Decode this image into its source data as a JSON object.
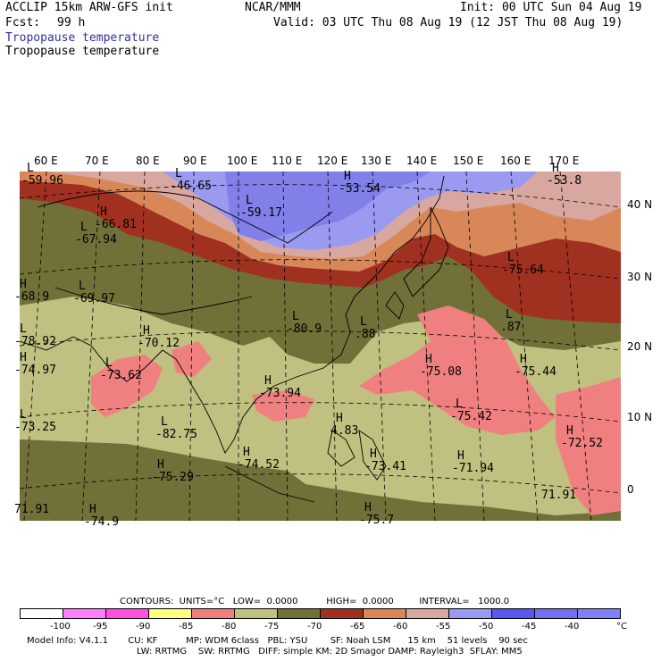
{
  "header": {
    "model": "ACCLIP 15km ARW-GFS init",
    "org": "NCAR/MMM",
    "init": "Init: 00 UTC Sun 04 Aug 19",
    "fcst_label": "Fcst:",
    "fcst_value": "99 h",
    "valid": "Valid: 03 UTC Thu 08 Aug 19 (12 JST Thu 08 Aug 19)",
    "field_blue": "Tropopause temperature",
    "field_black": "Tropopause temperature"
  },
  "map": {
    "lon_labels": [
      "60 E",
      "70 E",
      "80 E",
      "90 E",
      "100 E",
      "110 E",
      "120 E",
      "130 E",
      "140 E",
      "150 E",
      "160 E",
      "170 E"
    ],
    "lat_labels": [
      "40 N",
      "30 N",
      "20 N",
      "10 N",
      "0"
    ],
    "colors": {
      "violet": "#8080e8",
      "blue_light": "#9a9af0",
      "salmon": "#d8a090",
      "orange": "#d88858",
      "darkred": "#a03020",
      "olive": "#707038",
      "khaki": "#c0c080",
      "pink": "#f08080"
    },
    "extrema": [
      {
        "sym": "L",
        "val": "-59.96"
      },
      {
        "sym": "L",
        "val": "-46.65"
      },
      {
        "sym": "H",
        "val": "-53.54"
      },
      {
        "sym": "L",
        "val": "-59.17"
      },
      {
        "sym": "H",
        "val": "-53.8"
      },
      {
        "sym": "H",
        "val": "-66.81"
      },
      {
        "sym": "L",
        "val": "-67.94"
      },
      {
        "sym": "L",
        "val": "-75.64"
      },
      {
        "sym": "L",
        "val": "-69.97"
      },
      {
        "sym": "L",
        "val": ".87"
      },
      {
        "sym": "H",
        "val": "-68.9"
      },
      {
        "sym": "L",
        "val": "-80.9"
      },
      {
        "sym": "L",
        "val": ".88"
      },
      {
        "sym": "L",
        "val": "-78.92"
      },
      {
        "sym": "H",
        "val": "-70.12"
      },
      {
        "sym": "H",
        "val": "-75.44"
      },
      {
        "sym": "H",
        "val": "-74.97"
      },
      {
        "sym": "L",
        "val": "-73.62"
      },
      {
        "sym": "H",
        "val": "-75.08"
      },
      {
        "sym": "H",
        "val": "-73.94"
      },
      {
        "sym": "L",
        "val": "-75.42"
      },
      {
        "sym": "H",
        "val": "4.83"
      },
      {
        "sym": "L",
        "val": "-73.25"
      },
      {
        "sym": "L",
        "val": "-82.75"
      },
      {
        "sym": "H",
        "val": "-72.52"
      },
      {
        "sym": "H",
        "val": "-74.52"
      },
      {
        "sym": "H",
        "val": "-73.41"
      },
      {
        "sym": "H",
        "val": "-71.94"
      },
      {
        "sym": "H",
        "val": "-75.29"
      },
      {
        "sym": "",
        "val": "71.91"
      },
      {
        "sym": "",
        "val": "71.91"
      },
      {
        "sym": "H",
        "val": "-74.9"
      },
      {
        "sym": "H",
        "val": "-75.7"
      }
    ]
  },
  "footer": {
    "contours": "CONTOURS:  UNITS=°C   LOW=  0.0000          HIGH=  0.0000         INTERVAL=   1000.0",
    "line1": "Model Info: V4.1.1       CU: KF          MP: WDM 6class   PBL: YSU        SF: Noah LSM      15 km    51 levels    90 sec",
    "line2": "LW: RRTMG    SW: RRTMG   DIFF: simple KM: 2D Smagor DAMP: Rayleigh3  SFLAY: MM5"
  },
  "colorbar": {
    "colors": [
      "#ffffff",
      "#ff80ff",
      "#ff50e0",
      "#ffff80",
      "#f08080",
      "#c0c080",
      "#707038",
      "#a03020",
      "#d88858",
      "#d8a8a0",
      "#9a9af0",
      "#5858f0",
      "#7070f0",
      "#8080f8"
    ],
    "labels": [
      "-100",
      "-95",
      "-90",
      "-85",
      "-80",
      "-75",
      "-70",
      "-65",
      "-60",
      "-55",
      "-50",
      "-45",
      "-40",
      "°C"
    ]
  }
}
